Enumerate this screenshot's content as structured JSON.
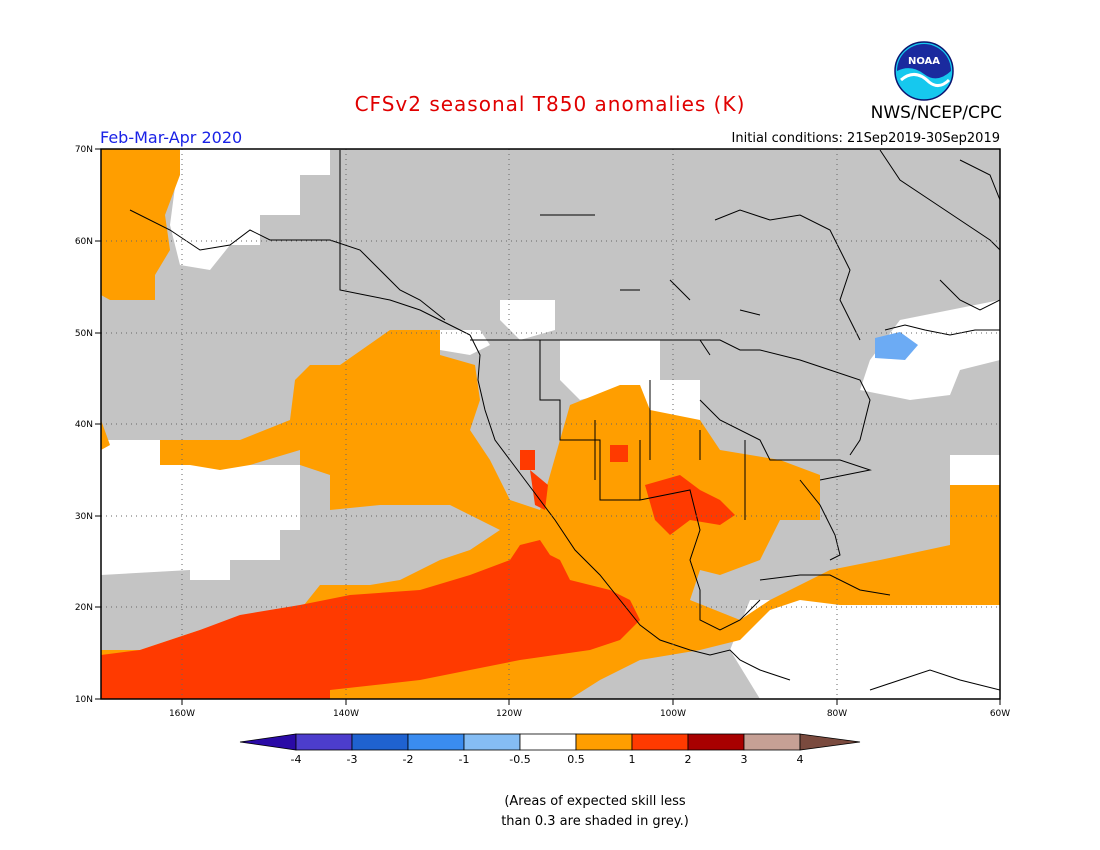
{
  "header": {
    "title": "CFSv2 seasonal T850 anomalies (K)",
    "agency": "NWS/NCEP/CPC",
    "logo_text": "NOAA",
    "period": "Feb-Mar-Apr 2020",
    "initial_conditions": "Initial conditions: 21Sep2019-30Sep2019"
  },
  "map": {
    "lat_labels": [
      "70N",
      "60N",
      "50N",
      "40N",
      "30N",
      "20N",
      "10N"
    ],
    "lon_labels": [
      "160W",
      "140W",
      "120W",
      "100W",
      "80W",
      "60W"
    ],
    "lat_range": [
      10,
      70
    ],
    "lon_range": [
      -170,
      -60
    ],
    "grid": "dotted"
  },
  "legend": {
    "labels": [
      "-4",
      "-3",
      "-2",
      "-1",
      "-0.5",
      "0.5",
      "1",
      "2",
      "3",
      "4"
    ],
    "colors": [
      "#2a0aa6",
      "#4c3dcc",
      "#1f62d0",
      "#3a8cf0",
      "#85bdf4",
      "#ffffff",
      "#ff9e00",
      "#ff3a00",
      "#a80000",
      "#c6a095",
      "#7a4a3e"
    ]
  },
  "colors": {
    "title": "#e00000",
    "period": "#1a22e6",
    "grey": "#c4c4c4",
    "orange": "#ff9e00",
    "red": "#ff3a00",
    "lightblue": "#6cabf4"
  },
  "note": {
    "line1": "(Areas of expected skill less",
    "line2": "than 0.3 are shaded in grey.)"
  }
}
